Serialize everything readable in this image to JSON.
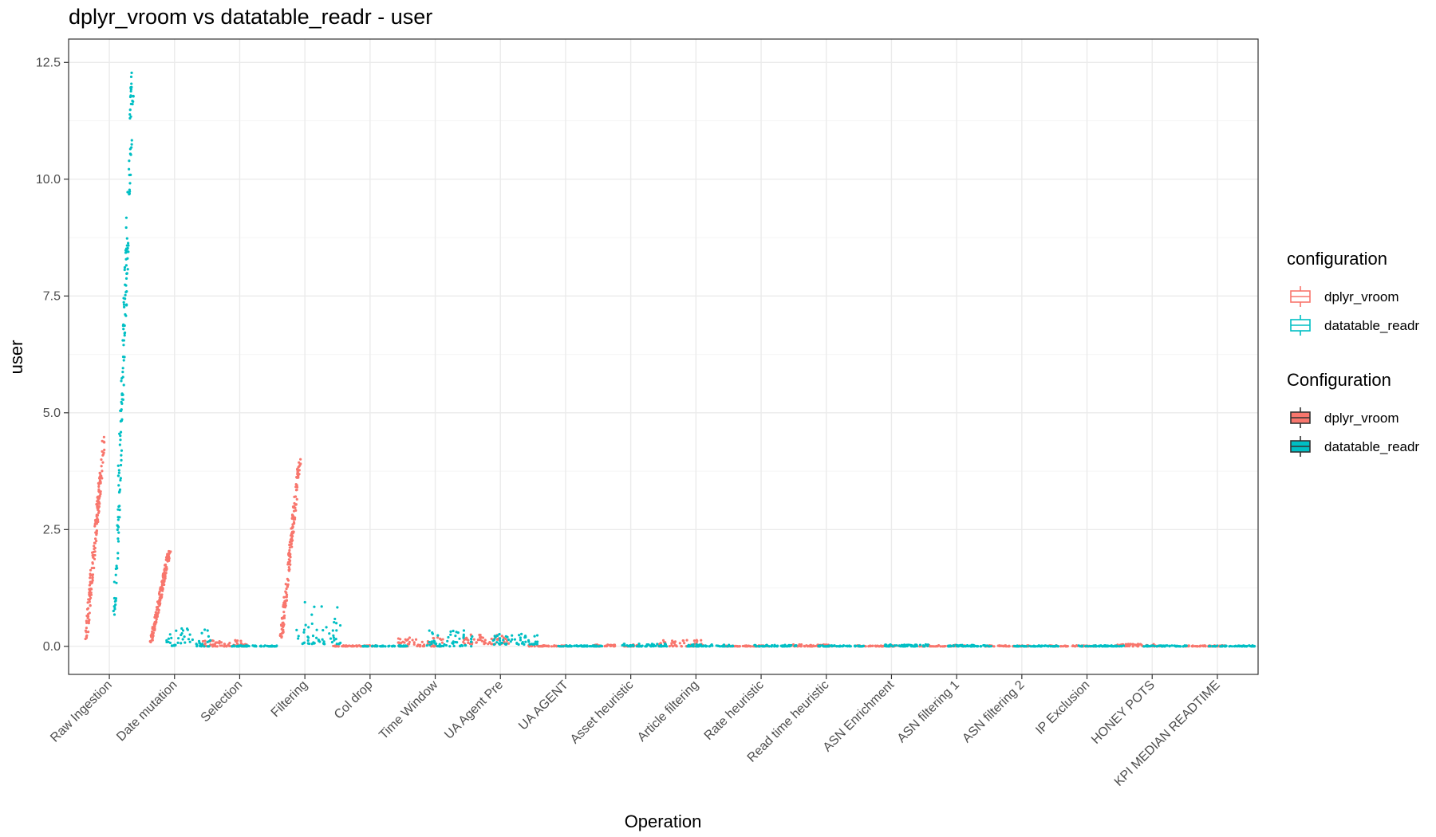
{
  "colors": {
    "dplyr_vroom": "#F8766D",
    "datatable_readr": "#00BFC4",
    "grid_major": "#EBEBEB",
    "grid_minor": "#F5F5F5",
    "panel_border": "#333333",
    "tick_text": "#4D4D4D"
  },
  "chart_data": {
    "type": "scatter",
    "title": "dplyr_vroom vs datatable_readr - user",
    "xlabel": "Operation",
    "ylabel": "user",
    "ylim": [
      -0.6,
      13.0
    ],
    "yticks": [
      0.0,
      2.5,
      5.0,
      7.5,
      10.0,
      12.5
    ],
    "ytick_labels": [
      "0.0",
      "2.5",
      "5.0",
      "7.5",
      "10.0",
      "12.5"
    ],
    "grid": true,
    "legend_position": "right",
    "categories": [
      "Raw Ingestion",
      "Date mutation",
      "Selection",
      "Filtering",
      "Col drop",
      "Time Window",
      "UA Agent Pre",
      "UA AGENT",
      "Asset heuristic",
      "Article filtering",
      "Rate heuristic",
      "Read time heuristic",
      "ASN Enrichment",
      "ASN filtering 1",
      "ASN filtering 2",
      "IP Exclusion",
      "HONEY POTS",
      "KPI MEDIAN READTIME"
    ],
    "series": [
      {
        "name": "dplyr_vroom",
        "ranges": [
          {
            "category": "Raw Ingestion",
            "min": 0.12,
            "max": 4.5
          },
          {
            "category": "Date mutation",
            "min": 0.08,
            "max": 2.05
          },
          {
            "category": "Selection",
            "min": 0.0,
            "max": 0.14
          },
          {
            "category": "Filtering",
            "min": 0.18,
            "max": 4.02
          },
          {
            "category": "Col drop",
            "min": 0.0,
            "max": 0.02
          },
          {
            "category": "Time Window",
            "min": 0.0,
            "max": 0.22
          },
          {
            "category": "UA Agent Pre",
            "min": 0.05,
            "max": 0.25
          },
          {
            "category": "UA AGENT",
            "min": 0.0,
            "max": 0.02
          },
          {
            "category": "Asset heuristic",
            "min": 0.0,
            "max": 0.04
          },
          {
            "category": "Article filtering",
            "min": 0.0,
            "max": 0.14
          },
          {
            "category": "Rate heuristic",
            "min": 0.0,
            "max": 0.02
          },
          {
            "category": "Read time heuristic",
            "min": 0.0,
            "max": 0.04
          },
          {
            "category": "ASN Enrichment",
            "min": 0.0,
            "max": 0.02
          },
          {
            "category": "ASN filtering 1",
            "min": 0.0,
            "max": 0.03
          },
          {
            "category": "ASN filtering 2",
            "min": 0.0,
            "max": 0.02
          },
          {
            "category": "IP Exclusion",
            "min": 0.0,
            "max": 0.02
          },
          {
            "category": "HONEY POTS",
            "min": 0.0,
            "max": 0.05
          },
          {
            "category": "KPI MEDIAN READTIME",
            "min": 0.0,
            "max": 0.02
          }
        ]
      },
      {
        "name": "datatable_readr",
        "ranges": [
          {
            "category": "Raw Ingestion",
            "min": 0.6,
            "max": 12.28
          },
          {
            "category": "Date mutation",
            "min": 0.0,
            "max": 0.4
          },
          {
            "category": "Selection",
            "min": 0.0,
            "max": 0.02
          },
          {
            "category": "Filtering",
            "min": 0.05,
            "max": 0.95
          },
          {
            "category": "Col drop",
            "min": 0.0,
            "max": 0.02
          },
          {
            "category": "Time Window",
            "min": 0.0,
            "max": 0.34
          },
          {
            "category": "UA Agent Pre",
            "min": 0.04,
            "max": 0.28
          },
          {
            "category": "UA AGENT",
            "min": 0.0,
            "max": 0.02
          },
          {
            "category": "Asset heuristic",
            "min": 0.0,
            "max": 0.06
          },
          {
            "category": "Article filtering",
            "min": 0.0,
            "max": 0.04
          },
          {
            "category": "Rate heuristic",
            "min": 0.0,
            "max": 0.03
          },
          {
            "category": "Read time heuristic",
            "min": 0.0,
            "max": 0.02
          },
          {
            "category": "ASN Enrichment",
            "min": 0.0,
            "max": 0.04
          },
          {
            "category": "ASN filtering 1",
            "min": 0.0,
            "max": 0.03
          },
          {
            "category": "ASN filtering 2",
            "min": 0.0,
            "max": 0.02
          },
          {
            "category": "IP Exclusion",
            "min": 0.0,
            "max": 0.02
          },
          {
            "category": "HONEY POTS",
            "min": 0.0,
            "max": 0.02
          },
          {
            "category": "KPI MEDIAN READTIME",
            "min": 0.0,
            "max": 0.02
          }
        ]
      }
    ],
    "legends": [
      {
        "title": "configuration",
        "style": "outline",
        "entries": [
          "dplyr_vroom",
          "datatable_readr"
        ]
      },
      {
        "title": "Configuration",
        "style": "filled",
        "entries": [
          "dplyr_vroom",
          "datatable_readr"
        ]
      }
    ]
  }
}
